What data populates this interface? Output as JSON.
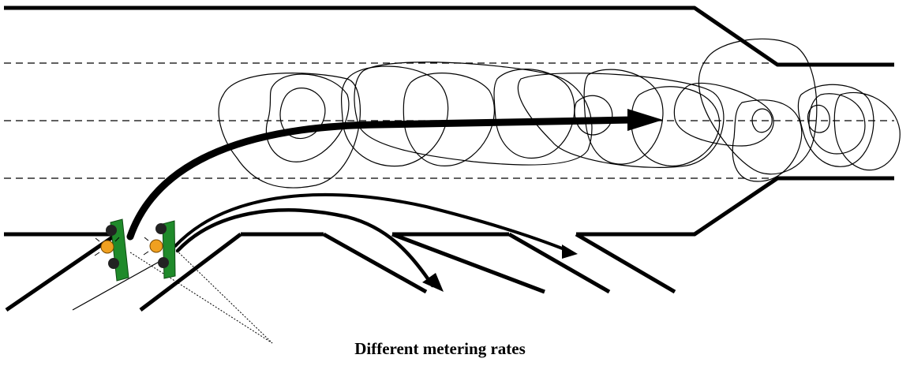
{
  "caption": "Different metering rates",
  "colors": {
    "road_edge": "#000000",
    "lane_divider": "#000000",
    "signal_pole": "#1f8a2a",
    "signal_amber": "#f0a020",
    "signal_dark": "#222222"
  },
  "icons": {
    "signal_a": "ramp-meter-signal-icon",
    "signal_b": "ramp-meter-signal-icon"
  }
}
